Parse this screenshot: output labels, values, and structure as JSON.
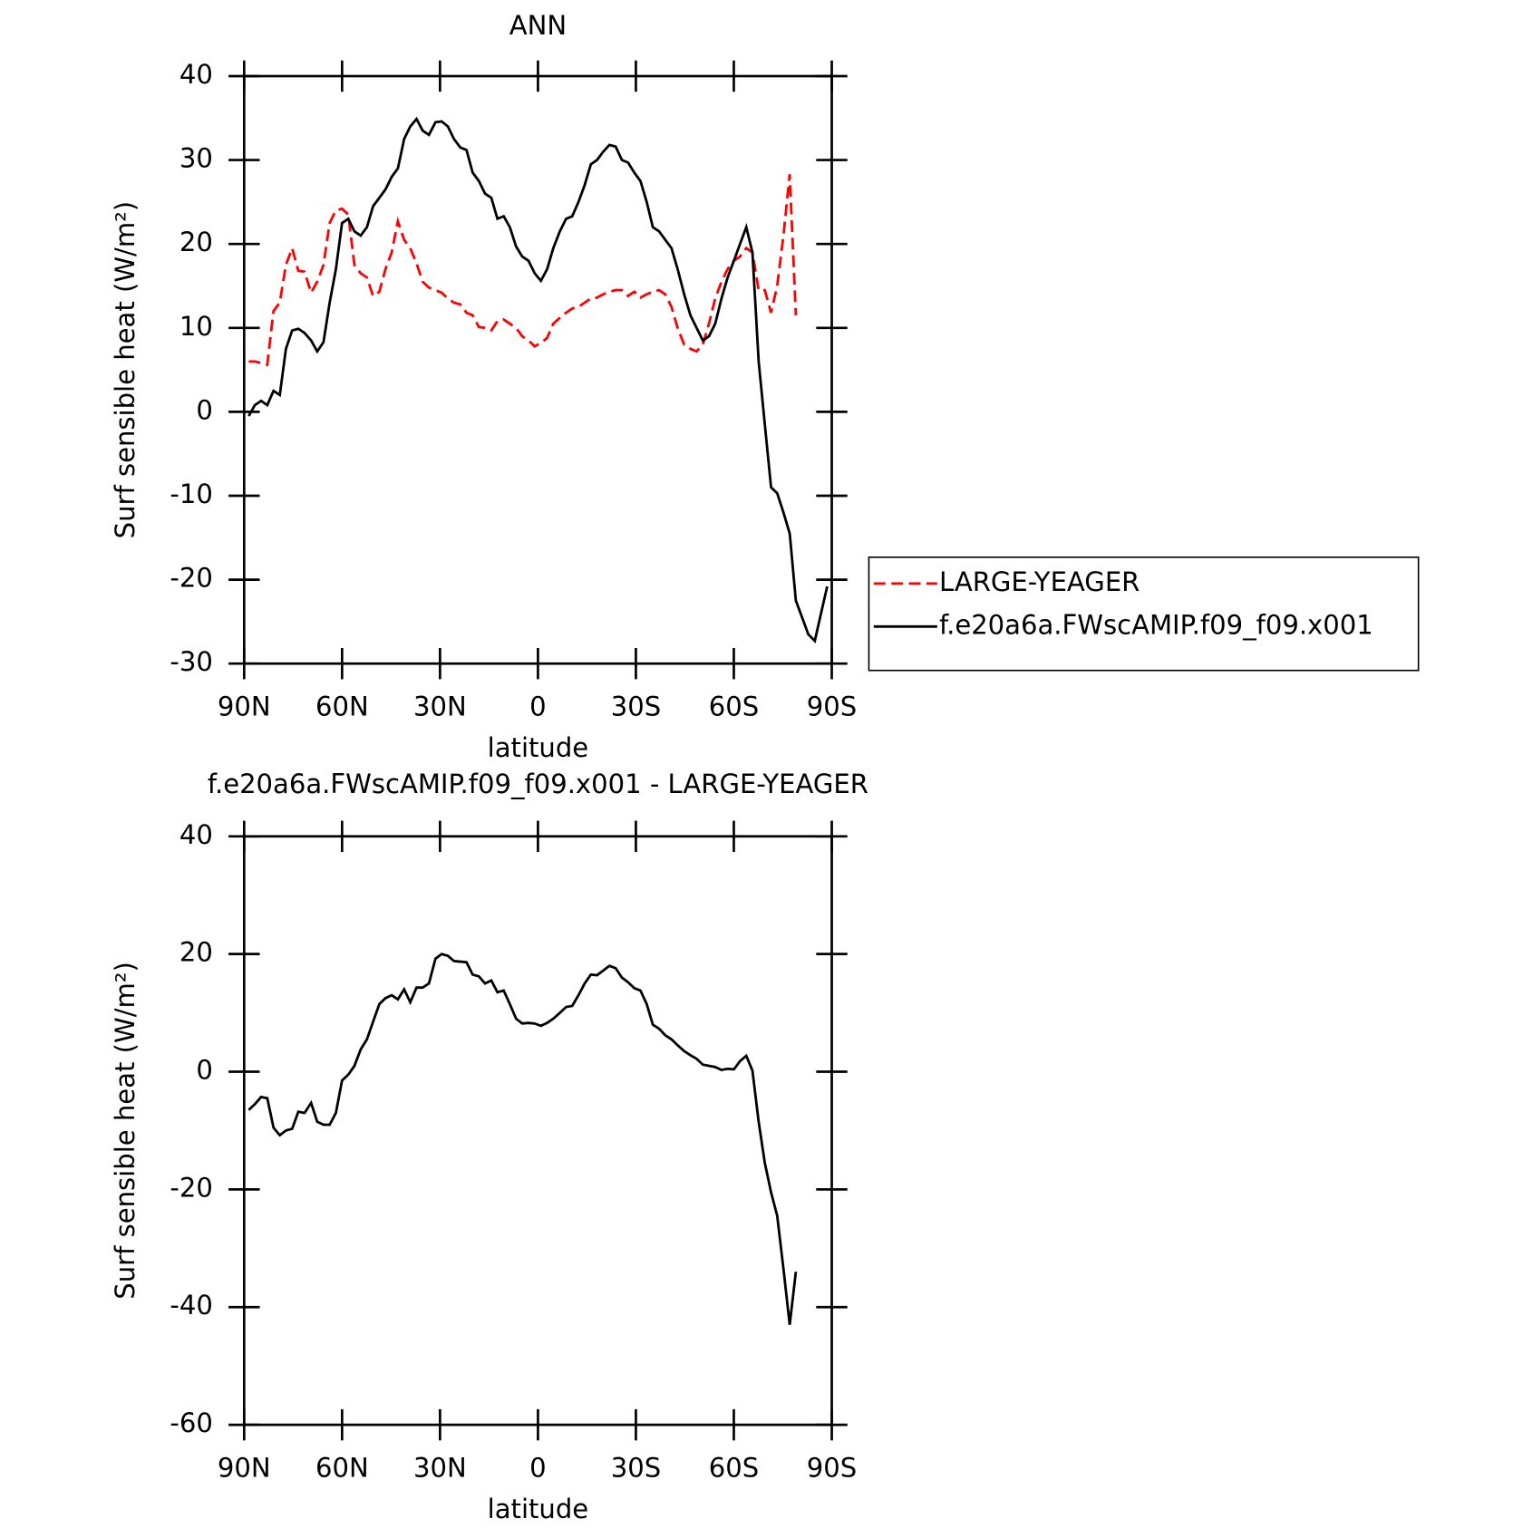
{
  "chart_data": [
    {
      "type": "line",
      "title": "ANN",
      "x_label": "latitude",
      "y_label": "Surf sensible heat (W/m²)",
      "xlim": [
        90,
        -90
      ],
      "ylim": [
        -30,
        40
      ],
      "xticks": [
        {
          "value": 90,
          "label": "90N"
        },
        {
          "value": 60,
          "label": "60N"
        },
        {
          "value": 30,
          "label": "30N"
        },
        0,
        {
          "value": -30,
          "label": "30S"
        },
        {
          "value": -60,
          "label": "60S"
        },
        {
          "value": -90,
          "label": "90S"
        }
      ],
      "yticks": [
        -30,
        -20,
        -10,
        0,
        10,
        20,
        30,
        40
      ],
      "legend": "right",
      "x": [
        88.6,
        86.7,
        84.8,
        82.9,
        81.0,
        79.1,
        77.2,
        75.3,
        73.4,
        71.5,
        69.5,
        67.6,
        65.7,
        63.8,
        61.9,
        60.0,
        58.1,
        56.2,
        54.3,
        52.4,
        50.5,
        48.6,
        46.7,
        44.8,
        42.9,
        41.0,
        39.1,
        37.2,
        35.3,
        33.4,
        31.4,
        29.5,
        27.6,
        25.7,
        23.8,
        21.9,
        20.0,
        18.1,
        16.2,
        14.3,
        12.4,
        10.5,
        8.6,
        6.7,
        4.8,
        2.9,
        1.0,
        -0.9,
        -2.8,
        -4.7,
        -6.7,
        -8.6,
        -10.5,
        -12.4,
        -14.3,
        -16.2,
        -18.1,
        -20.0,
        -21.9,
        -23.8,
        -25.7,
        -27.6,
        -29.5,
        -31.4,
        -33.3,
        -35.2,
        -37.1,
        -39.0,
        -40.9,
        -42.8,
        -44.8,
        -46.7,
        -48.6,
        -50.5,
        -52.4,
        -54.3,
        -56.2,
        -58.1,
        -60.0,
        -61.9,
        -63.8,
        -65.7,
        -67.6,
        -69.5,
        -71.4,
        -73.3,
        -75.2,
        -77.1,
        -79.0,
        -80.9,
        -82.8,
        -84.8,
        -86.7,
        -88.6
      ],
      "series": [
        {
          "name": "LARGE-YEAGER",
          "color": "#ff0000",
          "line_style": "dashed",
          "values": [
            6,
            6,
            5.8,
            5.6,
            12,
            13,
            17.5,
            19.5,
            16.8,
            16.7,
            14.2,
            15.5,
            17.5,
            22.5,
            24,
            24.2,
            23.5,
            17.5,
            16.5,
            16,
            13.8,
            14.3,
            17,
            19,
            22.7,
            20.5,
            19.5,
            17.7,
            15.5,
            14.8,
            14.5,
            14.2,
            13.5,
            13,
            12.8,
            11.8,
            11.5,
            10.1,
            10,
            9.7,
            10.8,
            11,
            10.5,
            10,
            9,
            8.5,
            7.8,
            8.2,
            8.8,
            10.5,
            11.2,
            11.8,
            12.3,
            12.5,
            13,
            13.5,
            13.6,
            14,
            14.3,
            14.5,
            14.5,
            13.8,
            14.3,
            13.6,
            14,
            14.3,
            14.5,
            14,
            12.5,
            10,
            8,
            7.5,
            7.2,
            8,
            10.5,
            13.5,
            15.5,
            17,
            18,
            18.5,
            19.5,
            19,
            14.5,
            14.5,
            11.8,
            15,
            21,
            28.3,
            11.5,
            null,
            null,
            null,
            null,
            null
          ]
        },
        {
          "name": "f.e20a6a.FWscAMIP.f09_f09.x001",
          "color": "#000000",
          "line_style": "solid",
          "values": [
            -0.5,
            0.8,
            1.3,
            0.8,
            2.5,
            2,
            7.5,
            9.7,
            9.9,
            9.4,
            8.5,
            7.2,
            8.3,
            13,
            17,
            22.5,
            23,
            21.5,
            21,
            22,
            24.5,
            25.5,
            26.5,
            28,
            29,
            32.5,
            34,
            34.9,
            33.5,
            33,
            34.5,
            34.6,
            34,
            32.5,
            31.5,
            31.2,
            28.5,
            27.5,
            26,
            25.5,
            23,
            23.3,
            22,
            19.7,
            18.5,
            18,
            16.5,
            15.6,
            17,
            19.5,
            21.5,
            23,
            23.3,
            25,
            27,
            29.5,
            30,
            31,
            31.8,
            31.6,
            30,
            29.7,
            28.5,
            27.5,
            25,
            22,
            21.5,
            20.5,
            19.5,
            17,
            14,
            11.5,
            10,
            8.5,
            9,
            10.5,
            13.5,
            16,
            18,
            20,
            22,
            19,
            6,
            -1.5,
            -9,
            -9.7,
            -12,
            -14.5,
            -22.5,
            -24.5,
            -26.5,
            -27.3,
            -24,
            -20.8
          ]
        }
      ]
    },
    {
      "type": "line",
      "title": "f.e20a6a.FWscAMIP.f09_f09.x001 - LARGE-YEAGER",
      "x_label": "latitude",
      "y_label": "Surf sensible heat (W/m²)",
      "xlim": [
        90,
        -90
      ],
      "ylim": [
        -60,
        40
      ],
      "xticks": [
        {
          "value": 90,
          "label": "90N"
        },
        {
          "value": 60,
          "label": "60N"
        },
        {
          "value": 30,
          "label": "30N"
        },
        0,
        {
          "value": -30,
          "label": "30S"
        },
        {
          "value": -60,
          "label": "60S"
        },
        {
          "value": -90,
          "label": "90S"
        }
      ],
      "yticks": [
        -60,
        -40,
        -20,
        0,
        20,
        40
      ],
      "x": [
        88.6,
        86.7,
        84.8,
        82.9,
        81.0,
        79.1,
        77.2,
        75.3,
        73.4,
        71.5,
        69.5,
        67.6,
        65.7,
        63.8,
        61.9,
        60.0,
        58.1,
        56.2,
        54.3,
        52.4,
        50.5,
        48.6,
        46.7,
        44.8,
        42.9,
        41.0,
        39.1,
        37.2,
        35.3,
        33.4,
        31.4,
        29.5,
        27.6,
        25.7,
        23.8,
        21.9,
        20.0,
        18.1,
        16.2,
        14.3,
        12.4,
        10.5,
        8.6,
        6.7,
        4.8,
        2.9,
        1.0,
        -0.9,
        -2.8,
        -4.7,
        -6.7,
        -8.6,
        -10.5,
        -12.4,
        -14.3,
        -16.2,
        -18.1,
        -20.0,
        -21.9,
        -23.8,
        -25.7,
        -27.6,
        -29.5,
        -31.4,
        -33.3,
        -35.2,
        -37.1,
        -39.0,
        -40.9,
        -42.8,
        -44.8,
        -46.7,
        -48.6,
        -50.5,
        -52.4,
        -54.3,
        -56.2,
        -58.1,
        -60.0,
        -61.9,
        -63.8,
        -65.7,
        -67.6,
        -69.5,
        -71.4,
        -73.3,
        -75.2,
        -77.1,
        -79.0,
        -80.9,
        -82.8,
        -84.8,
        -86.7,
        -88.6
      ],
      "series": [
        {
          "color": "#000000",
          "line_style": "solid",
          "values": [
            -6.5,
            -5.5,
            -4.3,
            -4.5,
            -9.5,
            -10.8,
            -10,
            -9.7,
            -6.8,
            -7,
            -5.3,
            -8.5,
            -9,
            -9,
            -7,
            -1.5,
            -0.5,
            1,
            3.8,
            5.5,
            8.5,
            11.5,
            12.5,
            13,
            12.3,
            14,
            11.8,
            14.3,
            14.3,
            15,
            19.2,
            20,
            19.7,
            18.8,
            18.7,
            18.6,
            16.5,
            16.2,
            15,
            15.5,
            13.5,
            13.8,
            11.5,
            9,
            8.2,
            8.3,
            8.2,
            7.8,
            8.3,
            9,
            10,
            11,
            11.2,
            13,
            15,
            16.5,
            16.4,
            17.2,
            18,
            17.6,
            16,
            15.2,
            14.2,
            13.8,
            11.5,
            8,
            7.3,
            6.2,
            5.5,
            4.5,
            3.5,
            2.8,
            2.2,
            1.2,
            1,
            0.8,
            0.3,
            0.5,
            0.4,
            1.8,
            2.7,
            0.2,
            -8.5,
            -15.5,
            -20.5,
            -24.5,
            -33.5,
            -43,
            -34,
            null,
            null,
            null,
            null,
            null
          ]
        }
      ]
    }
  ]
}
